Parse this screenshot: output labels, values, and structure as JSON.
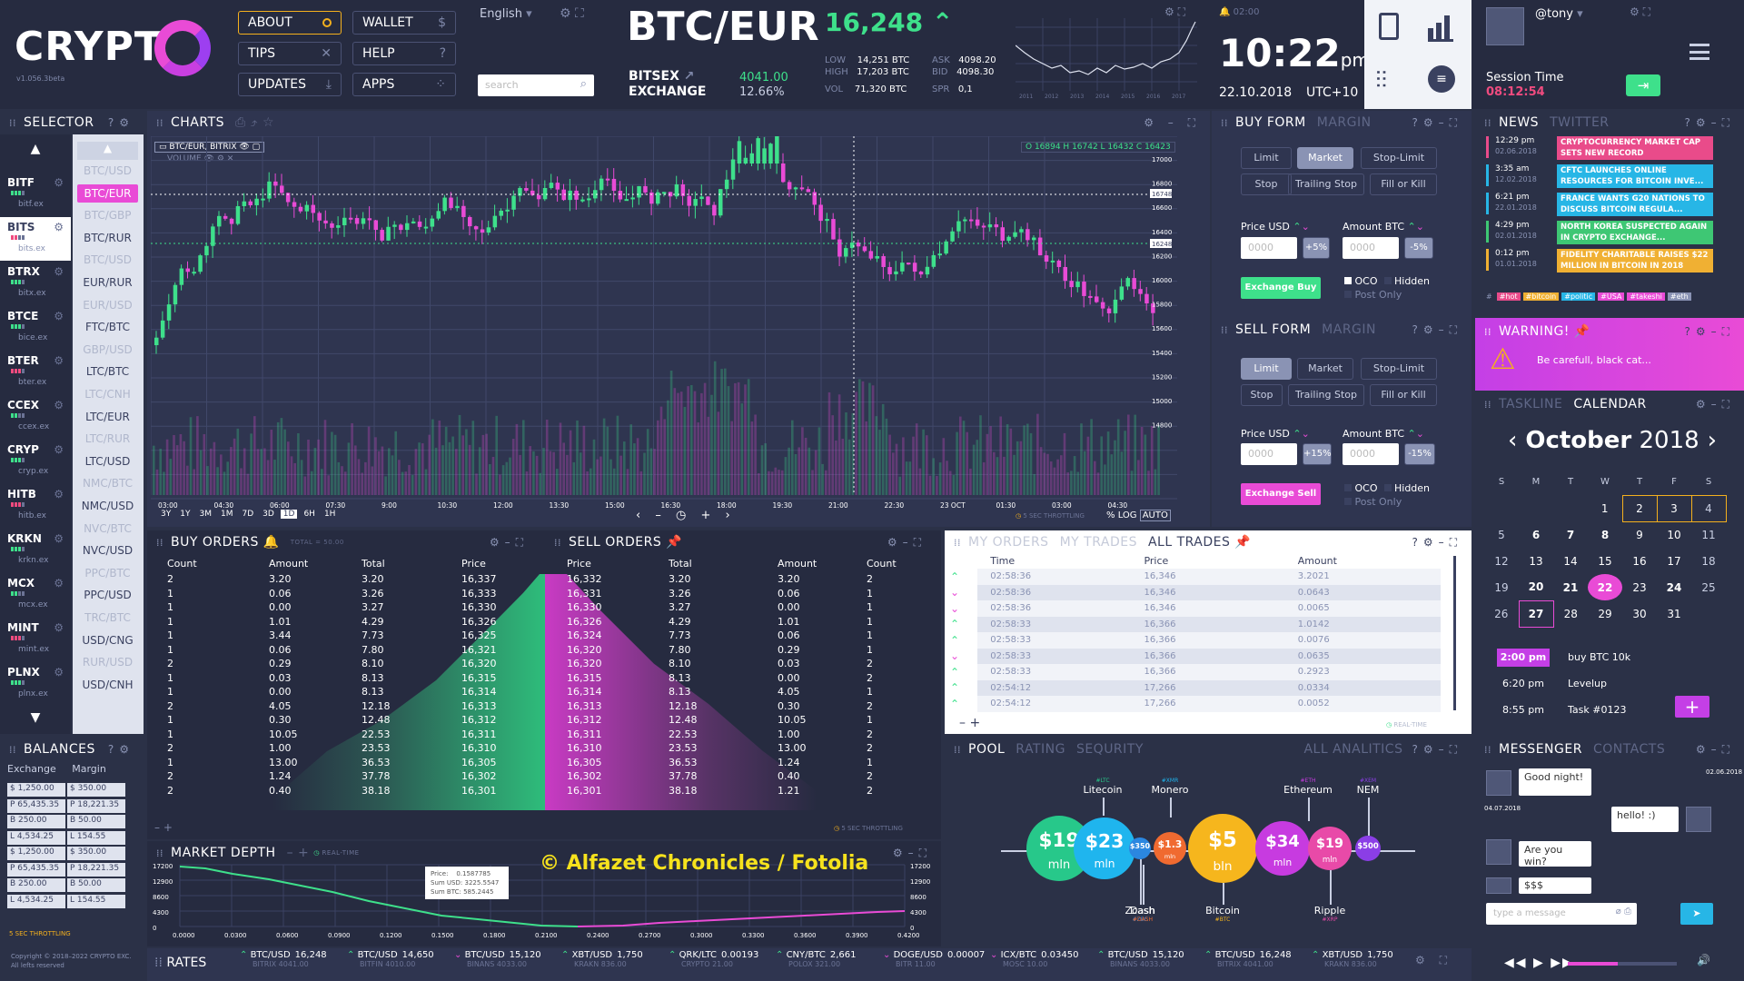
{
  "brand": {
    "name": "CRYPT",
    "version": "v1.056.3beta",
    "copyright": "Copyright © 2018–2022 CRYPTO EXC.",
    "rights": "All lefts reserved"
  },
  "topnav": {
    "about": "ABOUT",
    "wallet": "WALLET",
    "wallet_icon": "$",
    "tips": "TIPS",
    "help": "HELP",
    "help_icon": "?",
    "updates": "UPDATES",
    "apps": "APPS",
    "language": "English",
    "search_placeholder": "search"
  },
  "ticker": {
    "pair": "BTC/EUR",
    "price": "16,248",
    "exchange1": "BITSEX",
    "exchange2": "EXCHANGE",
    "val": "4041.00",
    "pct": "12.66%",
    "low_l": "LOW",
    "low": "14,251 BTC",
    "high_l": "HIGH",
    "high": "17,203 BTC",
    "vol_l": "VOL",
    "vol": "71,320 BTC",
    "ask_l": "ASK",
    "ask": "4098.20",
    "bid_l": "BID",
    "bid": "4098.30",
    "spr_l": "SPR",
    "spr": "0,1",
    "mini_years": [
      "2011",
      "2012",
      "2013",
      "2014",
      "2015",
      "2016",
      "2017"
    ],
    "mini_time": "02:00"
  },
  "clock": {
    "time": "10:22",
    "ampm": "pm",
    "date": "22.10.2018",
    "tz": "UTC+10"
  },
  "user": {
    "name": "@tony",
    "session_label": "Session Time",
    "session": "08:12:54"
  },
  "selector": {
    "title": "SELECTOR",
    "exchanges": [
      {
        "code": "BITF",
        "site": "bitf.ex"
      },
      {
        "code": "BITS",
        "site": "bits.ex"
      },
      {
        "code": "BTRX",
        "site": "bitx.ex"
      },
      {
        "code": "BTCE",
        "site": "bice.ex"
      },
      {
        "code": "BTER",
        "site": "bter.ex"
      },
      {
        "code": "CCEX",
        "site": "ccex.ex"
      },
      {
        "code": "CRYP",
        "site": "cryp.ex"
      },
      {
        "code": "HITB",
        "site": "hitb.ex"
      },
      {
        "code": "KRKN",
        "site": "krkn.ex"
      },
      {
        "code": "MCX",
        "site": "mcx.ex"
      },
      {
        "code": "MINT",
        "site": "mint.ex"
      },
      {
        "code": "PLNX",
        "site": "plnx.ex"
      }
    ],
    "pairs": [
      {
        "t": "BTC/USD",
        "s": "dim"
      },
      {
        "t": "BTC/EUR",
        "s": "active"
      },
      {
        "t": "BTC/GBP",
        "s": "dim"
      },
      {
        "t": "BTC/RUR",
        "s": "on"
      },
      {
        "t": "BTC/USD",
        "s": "dim"
      },
      {
        "t": "EUR/RUR",
        "s": "on"
      },
      {
        "t": "EUR/USD",
        "s": "dim"
      },
      {
        "t": "FTC/BTC",
        "s": "on"
      },
      {
        "t": "GBP/USD",
        "s": "dim"
      },
      {
        "t": "LTC/BTC",
        "s": "on"
      },
      {
        "t": "LTC/CNH",
        "s": "dim"
      },
      {
        "t": "LTC/EUR",
        "s": "on"
      },
      {
        "t": "LTC/RUR",
        "s": "dim"
      },
      {
        "t": "LTC/USD",
        "s": "on"
      },
      {
        "t": "NMC/BTC",
        "s": "dim"
      },
      {
        "t": "NMC/USD",
        "s": "on"
      },
      {
        "t": "NVC/BTC",
        "s": "dim"
      },
      {
        "t": "NVC/USD",
        "s": "on"
      },
      {
        "t": "PPC/BTC",
        "s": "dim"
      },
      {
        "t": "PPC/USD",
        "s": "on"
      },
      {
        "t": "TRC/BTC",
        "s": "dim"
      },
      {
        "t": "USD/CNG",
        "s": "on"
      },
      {
        "t": "RUR/USD",
        "s": "dim"
      },
      {
        "t": "USD/CNH",
        "s": "on"
      }
    ]
  },
  "balances": {
    "title": "BALANCES",
    "tab1": "Exchange",
    "tab2": "Margin",
    "rows": [
      [
        "$ 1,250.00",
        "$ 350.00"
      ],
      [
        "P 65,435.35",
        "P 18,221.35"
      ],
      [
        "B 250.00",
        "B 50.00"
      ],
      [
        "L 4,534.25",
        "L 154.55"
      ],
      [
        "$ 1,250.00",
        "$ 350.00"
      ],
      [
        "P 65,435.35",
        "P 18,221.35"
      ],
      [
        "B 250.00",
        "B 50.00"
      ],
      [
        "L 4,534.25",
        "L 154.55"
      ]
    ],
    "throttle": "5 SEC THROTTLING"
  },
  "charts": {
    "title": "CHARTS",
    "pair_tag": "BTC/EUR, BITRIX",
    "volume": "VOLUME",
    "ohlc": "O 16894 H 16742 L 16432 C 16423",
    "ranges": [
      "3Y",
      "1Y",
      "3M",
      "1M",
      "7D",
      "3D",
      "1D",
      "6H",
      "1H"
    ],
    "active_range": "1D",
    "xticks": [
      "03:00",
      "04:30",
      "06:00",
      "07:30",
      "9:00",
      "10:30",
      "12:00",
      "13:30",
      "15:00",
      "16:30",
      "18:00",
      "19:30",
      "21:00",
      "22:30",
      "23 OCT",
      "01:30",
      "03:00",
      "04:30"
    ],
    "yticks": [
      "17000",
      "16800",
      "16600",
      "16400",
      "16200",
      "16000",
      "15800",
      "15600",
      "15400",
      "15200",
      "15000",
      "14800"
    ],
    "throttle": "5 SEC THROTTLING",
    "log": "LOG",
    "auto": "AUTO",
    "price_tag": "16248",
    "price_tag2": "16748"
  },
  "buyform": {
    "title": "BUY FORM",
    "margin": "MARGIN",
    "limit": "Limit",
    "market": "Market",
    "stoplimit": "Stop-Limit",
    "stop": "Stop",
    "trailing": "Trailing Stop",
    "fok": "Fill or Kill",
    "price": "Price USD",
    "amount": "Amount BTC",
    "ph": "0000",
    "plus": "+5%",
    "minus": "-5%",
    "action": "Exchange Buy",
    "oco": "OCO",
    "hidden": "Hidden",
    "postonly": "Post Only"
  },
  "sellform": {
    "title": "SELL FORM",
    "margin": "MARGIN",
    "plus": "+15%",
    "minus": "-15%",
    "action": "Exchange Sell"
  },
  "news": {
    "title": "NEWS",
    "twitter": "TWITTER",
    "items": [
      {
        "time": "12:29 pm",
        "date": "02.06.2018",
        "text": "CRYPTOCURRENCY MARKET CAP SETS NEW RECORD",
        "color": "#e94b8a"
      },
      {
        "time": "3:35 am",
        "date": "12.02.2018",
        "text": "CFTC LAUNCHES ONLINE RESOURCES FOR BITCOIN INVE...",
        "color": "#27b6e6"
      },
      {
        "time": "6:21 pm",
        "date": "22.01.2018",
        "text": "FRANCE WANTS G20 NATIONS TO DISCUSS BITCOIN REGULA...",
        "color": "#27b6e6"
      },
      {
        "time": "4:29 pm",
        "date": "02.01.2018",
        "text": "NORTH KOREA SUSPECTED AGAIN IN CRYPTO EXCHANGE...",
        "color": "#3ec774"
      },
      {
        "time": "0:12 pm",
        "date": "01.01.2018",
        "text": "FIDELITY CHARITABLE RAISES $22 MILLION IN BITCOIN IN 2018",
        "color": "#f0b033"
      }
    ],
    "tags": [
      "#hot",
      "#bitcoin",
      "#politic",
      "#USA",
      "#takeshi",
      "#eth"
    ]
  },
  "warning": {
    "title": "WARNING!",
    "text": "Be carefull, black cat..."
  },
  "calendar": {
    "tab1": "TASKLINE",
    "tab2": "CALENDAR",
    "month": "October",
    "year": "2018",
    "days": [
      "S",
      "M",
      "T",
      "W",
      "T",
      "F",
      "S"
    ],
    "weeks": [
      [
        "",
        "",
        "",
        "1",
        "2",
        "3",
        "4"
      ],
      [
        "5",
        "6",
        "7",
        "8",
        "9",
        "10",
        "11"
      ],
      [
        "12",
        "13",
        "14",
        "15",
        "16",
        "17",
        "18"
      ],
      [
        "19",
        "20",
        "21",
        "22",
        "23",
        "24",
        "25"
      ],
      [
        "26",
        "27",
        "28",
        "29",
        "30",
        "31",
        ""
      ]
    ],
    "tasks": [
      {
        "time": "2:00 pm",
        "text": "buy BTC 10k"
      },
      {
        "time": "6:20 pm",
        "text": "Levelup"
      },
      {
        "time": "8:55 pm",
        "text": "Task #0123"
      }
    ]
  },
  "buyorders": {
    "title": "BUY ORDERS",
    "total": "TOTAL = 50.00",
    "cols": [
      "Count",
      "Amount",
      "Total",
      "Price"
    ],
    "rows": [
      [
        "2",
        "3.20",
        "3.20",
        "16,337"
      ],
      [
        "1",
        "0.06",
        "3.26",
        "16,333"
      ],
      [
        "1",
        "0.00",
        "3.27",
        "16,330"
      ],
      [
        "1",
        "1.01",
        "4.29",
        "16,326"
      ],
      [
        "1",
        "3.44",
        "7.73",
        "16,325"
      ],
      [
        "1",
        "0.06",
        "7.80",
        "16,321"
      ],
      [
        "2",
        "0.29",
        "8.10",
        "16,320"
      ],
      [
        "1",
        "0.03",
        "8.13",
        "16,315"
      ],
      [
        "1",
        "0.00",
        "8.13",
        "16,314"
      ],
      [
        "2",
        "4.05",
        "12.18",
        "16,313"
      ],
      [
        "1",
        "0.30",
        "12.48",
        "16,312"
      ],
      [
        "1",
        "10.05",
        "22.53",
        "16,311"
      ],
      [
        "2",
        "1.00",
        "23.53",
        "16,310"
      ],
      [
        "1",
        "13.00",
        "36.53",
        "16,305"
      ],
      [
        "2",
        "1.24",
        "37.78",
        "16,302"
      ],
      [
        "2",
        "0.40",
        "38.18",
        "16,301"
      ]
    ]
  },
  "sellorders": {
    "title": "SELL ORDERS",
    "cols": [
      "Price",
      "Total",
      "Amount",
      "Count"
    ],
    "rows": [
      [
        "16,332",
        "3.20",
        "3.20",
        "2"
      ],
      [
        "16,331",
        "3.26",
        "0.06",
        "1"
      ],
      [
        "16,330",
        "3.27",
        "0.00",
        "1"
      ],
      [
        "16,326",
        "4.29",
        "1.01",
        "1"
      ],
      [
        "16,324",
        "7.73",
        "0.06",
        "1"
      ],
      [
        "16,320",
        "7.80",
        "0.29",
        "1"
      ],
      [
        "16,320",
        "8.10",
        "0.03",
        "2"
      ],
      [
        "16,315",
        "8.13",
        "0.00",
        "2"
      ],
      [
        "16,314",
        "8.13",
        "4.05",
        "1"
      ],
      [
        "16,313",
        "12.18",
        "0.30",
        "2"
      ],
      [
        "16,312",
        "12.48",
        "10.05",
        "1"
      ],
      [
        "16,311",
        "22.53",
        "1.00",
        "2"
      ],
      [
        "16,310",
        "23.53",
        "13.00",
        "2"
      ],
      [
        "16,305",
        "36.53",
        "1.24",
        "1"
      ],
      [
        "16,302",
        "37.78",
        "0.40",
        "2"
      ],
      [
        "16,301",
        "38.18",
        "1.21",
        "2"
      ]
    ],
    "throttle": "5 SEC THROTTLING"
  },
  "trades": {
    "tab1": "MY ORDERS",
    "tab2": "MY TRADES",
    "tab3": "ALL TRADES",
    "cols": [
      "Time",
      "Price",
      "Amount"
    ],
    "rows": [
      [
        "up",
        "02:58:36",
        "16,346",
        "3.2021"
      ],
      [
        "dn",
        "02:58:36",
        "16,346",
        "0.0643"
      ],
      [
        "dn",
        "02:58:36",
        "16,346",
        "0.0065"
      ],
      [
        "up",
        "02:58:33",
        "16,366",
        "1.0142"
      ],
      [
        "up",
        "02:58:33",
        "16,366",
        "0.0076"
      ],
      [
        "dn",
        "02:58:33",
        "16,366",
        "0.0635"
      ],
      [
        "up",
        "02:58:33",
        "16,366",
        "0.2923"
      ],
      [
        "up",
        "02:54:12",
        "17,266",
        "0.0334"
      ],
      [
        "up",
        "02:54:12",
        "17,266",
        "0.0052"
      ]
    ],
    "realtime": "REAL-TIME"
  },
  "depth": {
    "title": "MARKET DEPTH",
    "realtime": "REAL-TIME",
    "yticks": [
      "17200",
      "12900",
      "8600",
      "4300",
      "0"
    ],
    "xticks": [
      "0.0000",
      "0.0300",
      "0.0600",
      "0.0900",
      "0.1200",
      "0.1500",
      "0.1800",
      "0.2100",
      "0.2400",
      "0.2700",
      "0.3000",
      "0.3300",
      "0.3600",
      "0.3900",
      "0.4200"
    ],
    "tip": [
      "Price:",
      "0.1587785",
      "Sum USD:",
      "3225.5547",
      "Sum BTC:",
      "585.2445"
    ],
    "watermark": "© Alfazet Chronicles / Fotolia"
  },
  "pool": {
    "tab1": "POOL",
    "tab2": "RATING",
    "tab3": "SEQURITY",
    "tab4": "ALL ANALITICS",
    "coins": [
      {
        "name": "Litecoin",
        "tag": "#LTC",
        "val": "$19",
        "unit": "mln",
        "color": "#27c88a"
      },
      {
        "name": "Monero",
        "tag": "#XMR",
        "val": "$23",
        "unit": "mln",
        "color": "#1fb5ee"
      },
      {
        "name": "Zcash",
        "tag": "#ZEC",
        "val": "$350",
        "unit": "",
        "color": "#2b87e0"
      },
      {
        "name": "Dash",
        "tag": "#DASH",
        "val": "$1.3",
        "unit": "mln",
        "color": "#f06a30"
      },
      {
        "name": "Bitcoin",
        "tag": "#BTC",
        "val": "$5",
        "unit": "bln",
        "color": "#f6b61d"
      },
      {
        "name": "Ethereum",
        "tag": "#ETH",
        "val": "$34",
        "unit": "mln",
        "color": "#c73be0"
      },
      {
        "name": "Ripple",
        "tag": "#XRP",
        "val": "$19",
        "unit": "mln",
        "color": "#e84aa8"
      },
      {
        "name": "NEM",
        "tag": "#XEM",
        "val": "$500",
        "unit": "",
        "color": "#8b3ee6"
      }
    ]
  },
  "messenger": {
    "tab1": "MESSENGER",
    "tab2": "CONTACTS",
    "date1": "02.06.2018",
    "date2": "04.07.2018",
    "msgs": [
      "Good night!",
      "hello! :)",
      "Are you win?",
      "$$$"
    ],
    "placeholder": "type a message"
  },
  "rates": {
    "title": "RATES",
    "items": [
      {
        "p": "BTC/USD",
        "v": "16,248",
        "s": "BITRIX 4041.00",
        "d": "up"
      },
      {
        "p": "BTC/USD",
        "v": "14,650",
        "s": "BITFIN 4010.00",
        "d": "up"
      },
      {
        "p": "BTC/USD",
        "v": "15,120",
        "s": "BINANS 4033.00",
        "d": "dn"
      },
      {
        "p": "XBT/USD",
        "v": "1,750",
        "s": "KRAKN 836.00",
        "d": "up"
      },
      {
        "p": "QRK/LTC",
        "v": "0.00193",
        "s": "CRYPTO 21.00",
        "d": "up"
      },
      {
        "p": "CNY/BTC",
        "v": "2,661",
        "s": "POLOX 321.00",
        "d": "up"
      },
      {
        "p": "DOGE/USD",
        "v": "0.00007",
        "s": "BITR 11.00",
        "d": "dn"
      },
      {
        "p": "ICX/BTC",
        "v": "0.03450",
        "s": "MOSC 10.00",
        "d": "dn"
      },
      {
        "p": "BTC/USD",
        "v": "15,120",
        "s": "BINANS 4033.00",
        "d": "up"
      },
      {
        "p": "BTC/USD",
        "v": "16,248",
        "s": "BITRIX 4041.00",
        "d": "up"
      },
      {
        "p": "XBT/USD",
        "v": "1,750",
        "s": "KRAKN 836.00",
        "d": "up"
      }
    ]
  },
  "colors": {
    "accent": "#e94bd6",
    "green": "#3ee08b",
    "bg": "#2b3147"
  }
}
